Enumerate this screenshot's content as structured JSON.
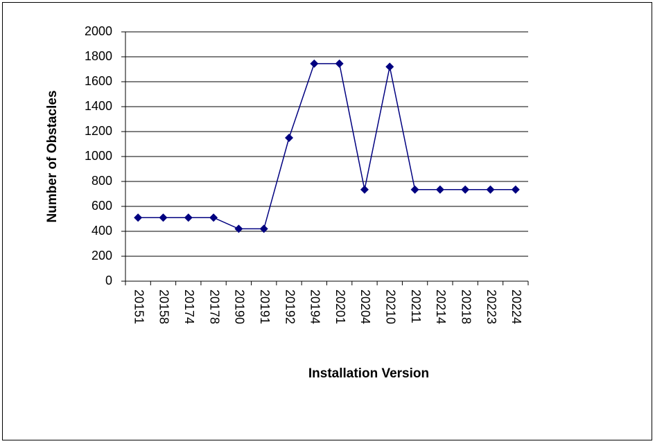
{
  "chart_data": {
    "type": "line",
    "x_label": "Installation Version",
    "y_label": "Number of Obstacles",
    "categories": [
      "20151",
      "20158",
      "20174",
      "20178",
      "20190",
      "20191",
      "20192",
      "20194",
      "20201",
      "20204",
      "20210",
      "20211",
      "20214",
      "20218",
      "20223",
      "20224"
    ],
    "series": [
      {
        "name": "Number of Obstacles",
        "color": "#000080",
        "values": [
          510,
          510,
          510,
          510,
          420,
          420,
          1150,
          1745,
          1745,
          735,
          1720,
          735,
          735,
          735,
          735,
          735
        ]
      }
    ],
    "ylim": [
      0,
      2000
    ],
    "yticks": [
      0,
      200,
      400,
      600,
      800,
      1000,
      1200,
      1400,
      1600,
      1800,
      2000
    ],
    "grid": true
  }
}
